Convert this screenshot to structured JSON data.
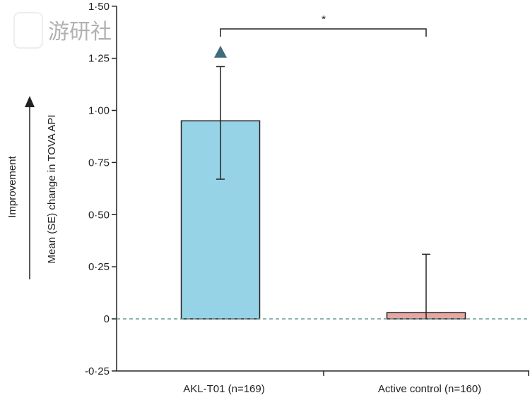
{
  "watermark": "游研社",
  "chart_data": {
    "type": "bar",
    "title": "",
    "xlabel": "",
    "ylabel": "Mean (SE) change in TOVA API",
    "direction_label": "Improvement",
    "ylim": [
      -0.25,
      1.5
    ],
    "yticks": [
      -0.25,
      0,
      0.25,
      0.5,
      0.75,
      1.0,
      1.25,
      1.5
    ],
    "ytick_labels": [
      "-0·25",
      "0",
      "0·25",
      "0·50",
      "0·75",
      "1·00",
      "1·25",
      "1·50"
    ],
    "categories": [
      "AKL-T01 (n=169)",
      "Active control (n=160)"
    ],
    "values": [
      0.95,
      0.03
    ],
    "error_upper": [
      1.21,
      0.31
    ],
    "error_lower": [
      0.67,
      null
    ],
    "bar_colors": [
      "#97d3e6",
      "#e8a6a2"
    ],
    "marker": {
      "category": "AKL-T01 (n=169)",
      "value": 1.28,
      "shape": "triangle",
      "color": "#3f6b7c"
    },
    "reference_line": {
      "value": 0,
      "style": "dashed",
      "color": "#6a9a9c"
    },
    "significance": {
      "label": "*",
      "between": [
        "AKL-T01 (n=169)",
        "Active control (n=160)"
      ]
    },
    "grid": false,
    "legend": "none"
  }
}
